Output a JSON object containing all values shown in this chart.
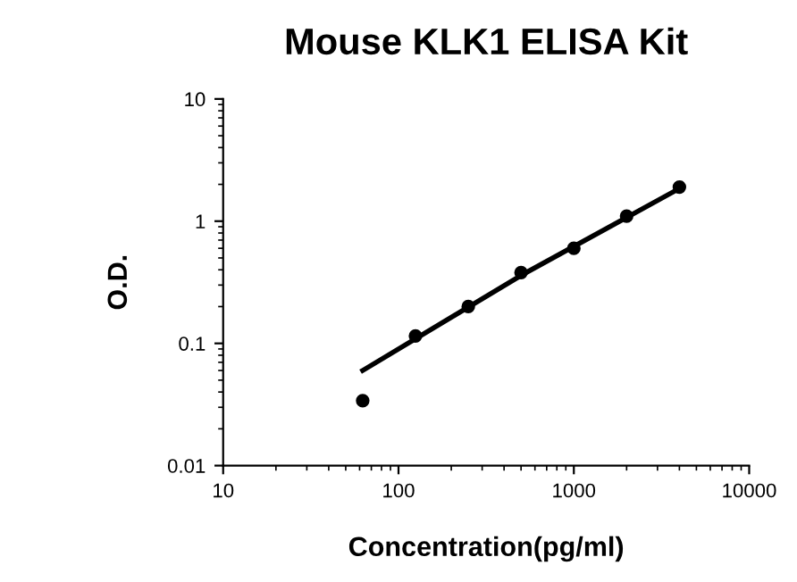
{
  "chart_data": {
    "type": "scatter",
    "title": "Mouse KLK1 ELISA Kit",
    "xlabel": "Concentration(pg/ml)",
    "ylabel": "O.D.",
    "log": "xy",
    "xlim": [
      10,
      10000
    ],
    "xticks": [
      10,
      100,
      1000,
      10000
    ],
    "ylim": [
      0.01,
      10
    ],
    "yticks": [
      0.01,
      0.1,
      1,
      10
    ],
    "grid": false,
    "legend": false,
    "series": [
      {
        "color": "#000000",
        "marker": "circle",
        "x": [
          62.5,
          125,
          250,
          500,
          1000,
          2000,
          4000
        ],
        "values": [
          0.034,
          0.115,
          0.2,
          0.38,
          0.6,
          1.1,
          1.9
        ]
      },
      {
        "type": "line",
        "marker": "none",
        "color": "#000000",
        "x": [
          62.5,
          500,
          4000
        ],
        "values": [
          0.06,
          0.36,
          1.85
        ]
      }
    ]
  }
}
